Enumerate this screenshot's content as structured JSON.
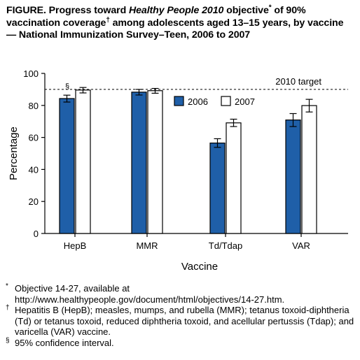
{
  "title": {
    "lead": "FIGURE. Progress toward ",
    "italic": "Healthy People 2010",
    "mid1": " objective",
    "mark1": "*",
    "mid2": " of 90% vaccination coverage",
    "mark2": "†",
    "tail": " among adolescents aged 13–15 years, by vaccine — National Immunization Survey–Teen, 2006 to 2007"
  },
  "chart_data": {
    "type": "bar",
    "categories": [
      "HepB",
      "MMR",
      "Td/Tdap",
      "VAR"
    ],
    "series": [
      {
        "name": "2006",
        "values": [
          84.3,
          88.3,
          56.5,
          70.9
        ],
        "ci_low": [
          82.1,
          86.5,
          53.8,
          66.8
        ],
        "ci_high": [
          86.4,
          90.0,
          59.2,
          74.9
        ],
        "color": "#1f5fa8"
      },
      {
        "name": "2007",
        "values": [
          89.6,
          89.2,
          69.1,
          79.9
        ],
        "ci_low": [
          87.8,
          87.6,
          66.8,
          75.9
        ],
        "ci_high": [
          91.2,
          90.6,
          71.4,
          83.8
        ],
        "color": "#ffffff"
      }
    ],
    "xlabel": "Vaccine",
    "ylabel": "Percentage",
    "ylim": [
      0,
      100
    ],
    "yticks": [
      0,
      20,
      40,
      60,
      80,
      100
    ],
    "reference_line": {
      "value": 90,
      "label": "2010 target",
      "style": "dashed"
    },
    "ci_marker": "§",
    "legend": {
      "placement": "upper-center",
      "entries": [
        "2006",
        "2007"
      ]
    },
    "grid": false
  },
  "footnotes": [
    {
      "mark": "*",
      "text": "Objective 14-27, available at http://www.healthypeople.gov/document/html/objectives/14-27.htm."
    },
    {
      "mark": "†",
      "text": "Hepatitis B (HepB); measles, mumps, and rubella (MMR); tetanus toxoid-diphtheria (Td) or tetanus toxoid, reduced diphtheria toxoid, and acellular pertussis (Tdap); and varicella (VAR) vaccine."
    },
    {
      "mark": "§",
      "text": "95% confidence interval."
    }
  ]
}
